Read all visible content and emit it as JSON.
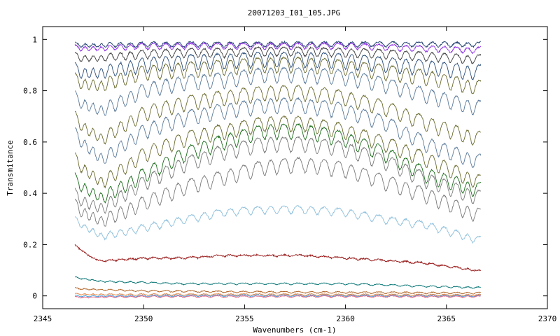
{
  "chart_data": {
    "type": "line",
    "title": "20071203_I01_105.JPG",
    "xlabel": "Wavenumbers (cm-1)",
    "ylabel": "Transmitance",
    "xlim": [
      2345,
      2370
    ],
    "ylim": [
      -0.05,
      1.05
    ],
    "x_ticks": [
      2345,
      2350,
      2355,
      2360,
      2365,
      2370
    ],
    "x_tick_labels": [
      "2345",
      "2350",
      "2355",
      "2360",
      "2365",
      "2370"
    ],
    "y_ticks": [
      0,
      0.2,
      0.4,
      0.6,
      0.8,
      1
    ],
    "y_tick_labels": [
      "0",
      "0.2",
      "0.4",
      "0.6",
      "0.8",
      "1"
    ],
    "x_range": [
      2346.6,
      2366.7
    ],
    "grid": false,
    "legend": "none",
    "series": [
      {
        "color": "#1f3f6f",
        "points": [
          [
            2346.6,
            0.99
          ],
          [
            2348,
            0.99
          ],
          [
            2350,
            0.99
          ],
          [
            2352,
            0.99
          ],
          [
            2354,
            0.99
          ],
          [
            2356,
            0.99
          ],
          [
            2358,
            0.99
          ],
          [
            2360,
            0.99
          ],
          [
            2362,
            0.99
          ],
          [
            2364,
            0.99
          ],
          [
            2366.7,
            0.99
          ]
        ]
      },
      {
        "color": "#8a2be2",
        "points": [
          [
            2346.6,
            0.98
          ],
          [
            2348,
            0.98
          ],
          [
            2350,
            0.985
          ],
          [
            2352,
            0.985
          ],
          [
            2354,
            0.985
          ],
          [
            2356,
            0.985
          ],
          [
            2358,
            0.985
          ],
          [
            2360,
            0.985
          ],
          [
            2362,
            0.98
          ],
          [
            2364,
            0.975
          ],
          [
            2366.7,
            0.97
          ]
        ]
      },
      {
        "color": "#3d3d3d",
        "points": [
          [
            2346.6,
            0.95
          ],
          [
            2348,
            0.95
          ],
          [
            2350,
            0.96
          ],
          [
            2352,
            0.965
          ],
          [
            2354,
            0.965
          ],
          [
            2356,
            0.97
          ],
          [
            2358,
            0.97
          ],
          [
            2360,
            0.965
          ],
          [
            2362,
            0.96
          ],
          [
            2364,
            0.95
          ],
          [
            2366.7,
            0.94
          ]
        ]
      },
      {
        "color": "#2a4d7a",
        "points": [
          [
            2346.6,
            0.91
          ],
          [
            2348,
            0.91
          ],
          [
            2350,
            0.93
          ],
          [
            2352,
            0.94
          ],
          [
            2354,
            0.945
          ],
          [
            2356,
            0.95
          ],
          [
            2358,
            0.95
          ],
          [
            2360,
            0.945
          ],
          [
            2362,
            0.93
          ],
          [
            2364,
            0.92
          ],
          [
            2366.7,
            0.9
          ]
        ]
      },
      {
        "color": "#6b6b2f",
        "points": [
          [
            2346.6,
            0.87
          ],
          [
            2348,
            0.86
          ],
          [
            2350,
            0.9
          ],
          [
            2352,
            0.91
          ],
          [
            2354,
            0.92
          ],
          [
            2356,
            0.93
          ],
          [
            2358,
            0.93
          ],
          [
            2360,
            0.92
          ],
          [
            2362,
            0.9
          ],
          [
            2364,
            0.88
          ],
          [
            2366.7,
            0.84
          ]
        ]
      },
      {
        "color": "#5a7a9a",
        "points": [
          [
            2346.6,
            0.8
          ],
          [
            2348,
            0.76
          ],
          [
            2350,
            0.83
          ],
          [
            2352,
            0.86
          ],
          [
            2354,
            0.87
          ],
          [
            2356,
            0.89
          ],
          [
            2358,
            0.89
          ],
          [
            2360,
            0.88
          ],
          [
            2362,
            0.85
          ],
          [
            2364,
            0.81
          ],
          [
            2366.7,
            0.76
          ]
        ]
      },
      {
        "color": "#6b6b2f",
        "points": [
          [
            2346.6,
            0.72
          ],
          [
            2348,
            0.65
          ],
          [
            2350,
            0.74
          ],
          [
            2352,
            0.78
          ],
          [
            2354,
            0.8
          ],
          [
            2356,
            0.82
          ],
          [
            2358,
            0.82
          ],
          [
            2360,
            0.8
          ],
          [
            2362,
            0.76
          ],
          [
            2364,
            0.7
          ],
          [
            2366.7,
            0.64
          ]
        ]
      },
      {
        "color": "#5a7a9a",
        "points": [
          [
            2346.6,
            0.66
          ],
          [
            2348,
            0.57
          ],
          [
            2350,
            0.67
          ],
          [
            2352,
            0.72
          ],
          [
            2354,
            0.75
          ],
          [
            2356,
            0.77
          ],
          [
            2358,
            0.77
          ],
          [
            2360,
            0.75
          ],
          [
            2362,
            0.7
          ],
          [
            2364,
            0.62
          ],
          [
            2366.7,
            0.55
          ]
        ]
      },
      {
        "color": "#6b6b2f",
        "points": [
          [
            2346.6,
            0.56
          ],
          [
            2348,
            0.48
          ],
          [
            2350,
            0.58
          ],
          [
            2352,
            0.64
          ],
          [
            2354,
            0.67
          ],
          [
            2356,
            0.7
          ],
          [
            2358,
            0.7
          ],
          [
            2360,
            0.67
          ],
          [
            2362,
            0.62
          ],
          [
            2364,
            0.56
          ],
          [
            2366.7,
            0.47
          ]
        ]
      },
      {
        "color": "#1a6b1a",
        "points": [
          [
            2346.6,
            0.48
          ],
          [
            2348,
            0.42
          ],
          [
            2350,
            0.5
          ],
          [
            2352,
            0.58
          ],
          [
            2354,
            0.63
          ],
          [
            2356,
            0.67
          ],
          [
            2358,
            0.67
          ],
          [
            2360,
            0.64
          ],
          [
            2362,
            0.58
          ],
          [
            2364,
            0.5
          ],
          [
            2366.7,
            0.44
          ]
        ]
      },
      {
        "color": "#7a7a7a",
        "points": [
          [
            2346.6,
            0.42
          ],
          [
            2348,
            0.38
          ],
          [
            2350,
            0.47
          ],
          [
            2352,
            0.54
          ],
          [
            2354,
            0.59
          ],
          [
            2356,
            0.62
          ],
          [
            2358,
            0.62
          ],
          [
            2360,
            0.6
          ],
          [
            2362,
            0.55
          ],
          [
            2364,
            0.48
          ],
          [
            2366.7,
            0.41
          ]
        ]
      },
      {
        "color": "#7a7a7a",
        "points": [
          [
            2346.6,
            0.38
          ],
          [
            2348,
            0.33
          ],
          [
            2350,
            0.39
          ],
          [
            2352,
            0.45
          ],
          [
            2354,
            0.49
          ],
          [
            2356,
            0.53
          ],
          [
            2358,
            0.54
          ],
          [
            2360,
            0.52
          ],
          [
            2362,
            0.47
          ],
          [
            2364,
            0.42
          ],
          [
            2366.7,
            0.34
          ]
        ]
      },
      {
        "color": "#8fc0dc",
        "points": [
          [
            2346.6,
            0.31
          ],
          [
            2348,
            0.25
          ],
          [
            2350,
            0.28
          ],
          [
            2352,
            0.31
          ],
          [
            2354,
            0.34
          ],
          [
            2356,
            0.35
          ],
          [
            2358,
            0.35
          ],
          [
            2360,
            0.34
          ],
          [
            2362,
            0.31
          ],
          [
            2364,
            0.29
          ],
          [
            2366.7,
            0.23
          ]
        ]
      },
      {
        "color": "#9a1b1b",
        "points": [
          [
            2346.6,
            0.2
          ],
          [
            2347.5,
            0.15
          ],
          [
            2348,
            0.14
          ],
          [
            2350,
            0.15
          ],
          [
            2352,
            0.15
          ],
          [
            2354,
            0.16
          ],
          [
            2356,
            0.16
          ],
          [
            2358,
            0.16
          ],
          [
            2360,
            0.15
          ],
          [
            2362,
            0.14
          ],
          [
            2364,
            0.13
          ],
          [
            2366.7,
            0.1
          ]
        ]
      },
      {
        "color": "#007070",
        "points": [
          [
            2346.6,
            0.075
          ],
          [
            2348,
            0.06
          ],
          [
            2350,
            0.055
          ],
          [
            2352,
            0.05
          ],
          [
            2354,
            0.05
          ],
          [
            2356,
            0.05
          ],
          [
            2358,
            0.05
          ],
          [
            2360,
            0.05
          ],
          [
            2362,
            0.045
          ],
          [
            2364,
            0.04
          ],
          [
            2366.7,
            0.035
          ]
        ]
      },
      {
        "color": "#b06020",
        "points": [
          [
            2346.6,
            0.032
          ],
          [
            2350,
            0.022
          ],
          [
            2355,
            0.018
          ],
          [
            2360,
            0.016
          ],
          [
            2366.7,
            0.014
          ]
        ]
      },
      {
        "color": "#e08040",
        "points": [
          [
            2346.6,
            0.01
          ],
          [
            2350,
            0.008
          ],
          [
            2355,
            0.008
          ],
          [
            2360,
            0.007
          ],
          [
            2366.7,
            0.006
          ]
        ]
      },
      {
        "color": "#40a0e0",
        "points": [
          [
            2346.6,
            0.003
          ],
          [
            2350,
            0.003
          ],
          [
            2355,
            0.004
          ],
          [
            2360,
            0.003
          ],
          [
            2366.7,
            0.003
          ]
        ]
      },
      {
        "color": "#e06080",
        "points": [
          [
            2346.6,
            -0.002
          ],
          [
            2350,
            0.0
          ],
          [
            2355,
            0.0
          ],
          [
            2360,
            0.0
          ],
          [
            2366.7,
            0.0
          ]
        ]
      }
    ]
  }
}
